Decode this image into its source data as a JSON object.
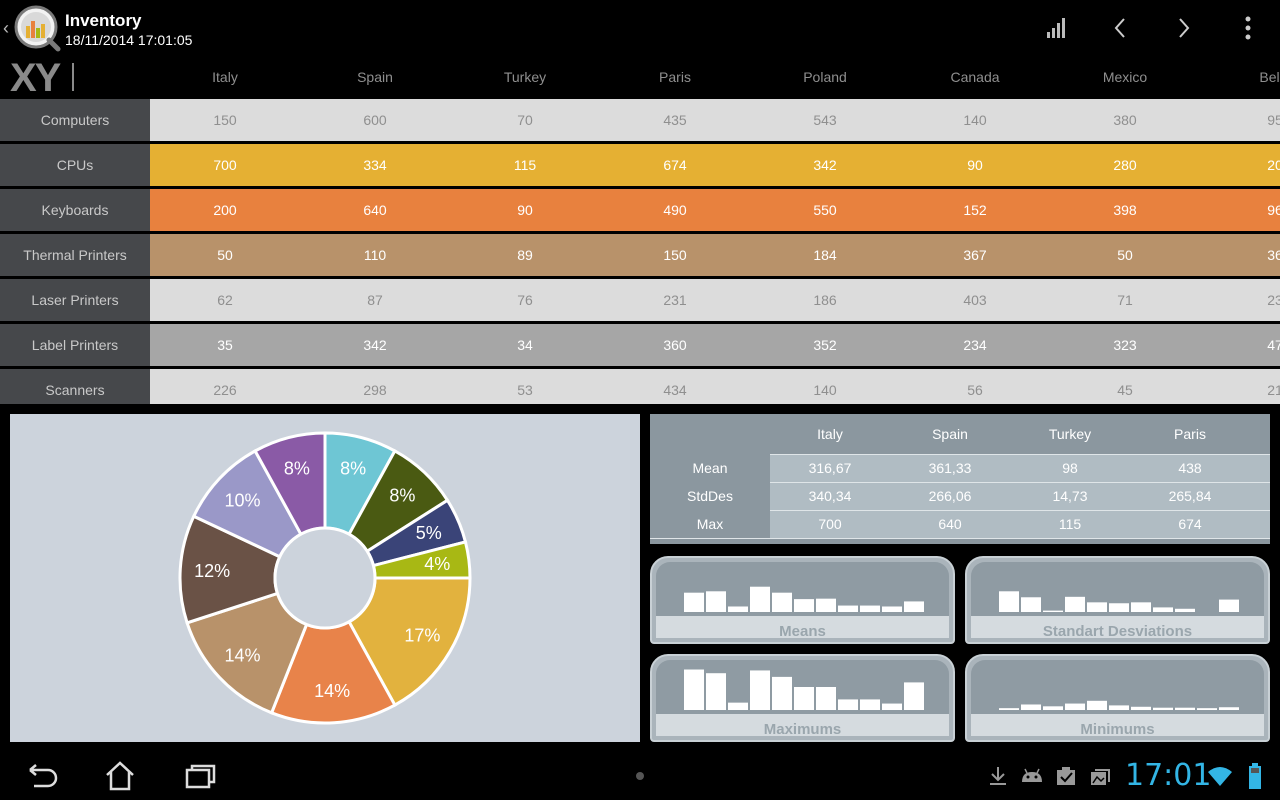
{
  "app": {
    "title": "Inventory",
    "subtitle": "18/11/2014 17:01:05",
    "logo_text": "XY"
  },
  "actions": [
    "chart-icon",
    "previous-icon",
    "next-icon",
    "overflow-menu-icon"
  ],
  "table": {
    "columns": [
      "Italy",
      "Spain",
      "Turkey",
      "Paris",
      "Poland",
      "Canada",
      "Mexico",
      "Belgi"
    ],
    "rows": [
      {
        "label": "Computers",
        "values": [
          "150",
          "600",
          "70",
          "435",
          "543",
          "140",
          "380",
          "95"
        ],
        "bg": "#dcdcdc",
        "fg": "#8f8f8f"
      },
      {
        "label": "CPUs",
        "values": [
          "700",
          "334",
          "115",
          "674",
          "342",
          "90",
          "280",
          "20"
        ],
        "bg": "#e5b033",
        "fg": "#ffffff"
      },
      {
        "label": "Keyboards",
        "values": [
          "200",
          "640",
          "90",
          "490",
          "550",
          "152",
          "398",
          "96"
        ],
        "bg": "#e8813e",
        "fg": "#ffffff"
      },
      {
        "label": "Thermal Printers",
        "values": [
          "50",
          "110",
          "89",
          "150",
          "184",
          "367",
          "50",
          "36"
        ],
        "bg": "#b8926a",
        "fg": "#ffffff"
      },
      {
        "label": "Laser Printers",
        "values": [
          "62",
          "87",
          "76",
          "231",
          "186",
          "403",
          "71",
          "23"
        ],
        "bg": "#dcdcdc",
        "fg": "#8f8f8f"
      },
      {
        "label": "Label Printers",
        "values": [
          "35",
          "342",
          "34",
          "360",
          "352",
          "234",
          "323",
          "47"
        ],
        "bg": "#a6a6a6",
        "fg": "#ffffff"
      },
      {
        "label": "Scanners",
        "values": [
          "226",
          "298",
          "53",
          "434",
          "140",
          "56",
          "45",
          "21"
        ],
        "bg": "#dcdcdc",
        "fg": "#8f8f8f"
      }
    ]
  },
  "chart_data": [
    {
      "type": "pie",
      "donut": true,
      "slices": [
        {
          "label": "8%",
          "value": 8,
          "color": "#6ec6d4"
        },
        {
          "label": "8%",
          "value": 8,
          "color": "#4a5a12"
        },
        {
          "label": "5%",
          "value": 5,
          "color": "#3a4478"
        },
        {
          "label": "4%",
          "value": 4,
          "color": "#a8b814"
        },
        {
          "label": "17%",
          "value": 17,
          "color": "#e2b23e"
        },
        {
          "label": "14%",
          "value": 14,
          "color": "#e8834a"
        },
        {
          "label": "14%",
          "value": 14,
          "color": "#b8926a"
        },
        {
          "label": "12%",
          "value": 12,
          "color": "#6a5246"
        },
        {
          "label": "10%",
          "value": 10,
          "color": "#9a98c8"
        },
        {
          "label": "8%",
          "value": 8,
          "color": "#8a5aa6"
        }
      ]
    },
    {
      "type": "bar",
      "title": "Means",
      "values": [
        0.42,
        0.45,
        0.12,
        0.55,
        0.42,
        0.28,
        0.29,
        0.14,
        0.14,
        0.12,
        0.23
      ]
    },
    {
      "type": "bar",
      "title": "Standart Desviations",
      "values": [
        0.45,
        0.32,
        0.03,
        0.33,
        0.21,
        0.19,
        0.21,
        0.1,
        0.07,
        0,
        0.27
      ]
    },
    {
      "type": "bar",
      "title": "Maximums",
      "values": [
        0.88,
        0.8,
        0.16,
        0.86,
        0.72,
        0.5,
        0.5,
        0.23,
        0.23,
        0.14,
        0.6
      ]
    },
    {
      "type": "bar",
      "title": "Minimums",
      "values": [
        0.04,
        0.12,
        0.08,
        0.14,
        0.2,
        0.1,
        0.07,
        0.05,
        0.05,
        0.04,
        0.06
      ]
    }
  ],
  "stats": {
    "columns": [
      "Italy",
      "Spain",
      "Turkey",
      "Paris"
    ],
    "rows": [
      {
        "label": "Mean",
        "values": [
          "316,67",
          "361,33",
          "98",
          "438"
        ]
      },
      {
        "label": "StdDes",
        "values": [
          "340,34",
          "266,06",
          "14,73",
          "265,84"
        ]
      },
      {
        "label": "Max",
        "values": [
          "700",
          "640",
          "115",
          "674"
        ]
      }
    ]
  },
  "status": {
    "time": "17:01",
    "icons": [
      "download-icon",
      "android-icon",
      "clipboard-check-icon",
      "gallery-icon",
      "wifi-icon",
      "battery-icon"
    ]
  },
  "nav": [
    "back-icon",
    "home-icon",
    "recent-apps-icon"
  ],
  "colors": {
    "accent": "#33b5e5"
  }
}
